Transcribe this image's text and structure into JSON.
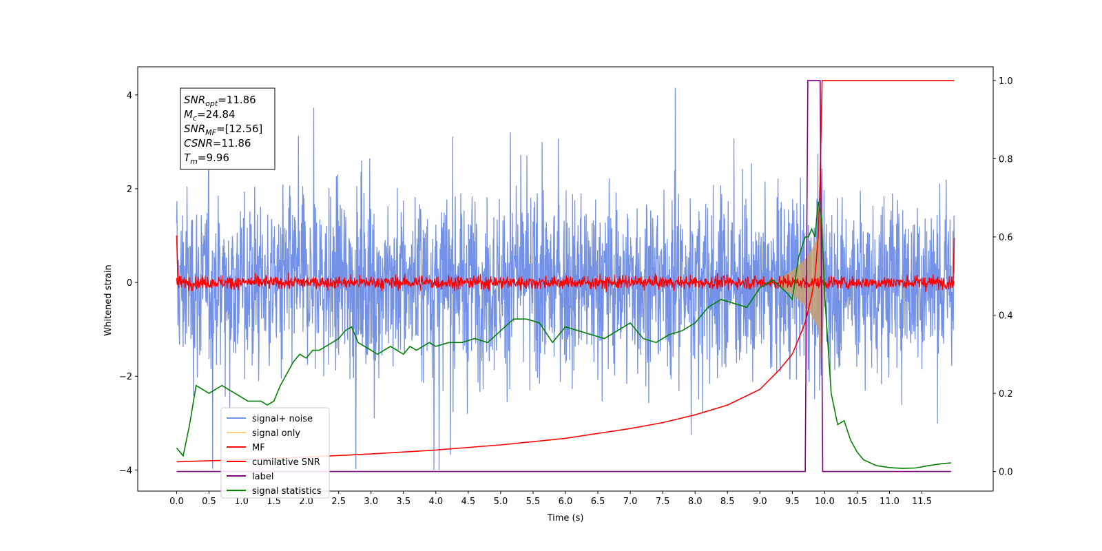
{
  "chart_data": {
    "type": "line",
    "xlabel": "Time (s)",
    "ylabel": "Whitened strain",
    "xlim": [
      -0.6,
      12.6
    ],
    "ylim": [
      -4.45,
      4.6
    ],
    "y2lim": [
      -0.05,
      1.035
    ],
    "grid": false,
    "legend_position": "lower-left",
    "x_ticks": [
      "0.0",
      "0.5",
      "1.0",
      "1.5",
      "2.0",
      "2.5",
      "3.0",
      "3.5",
      "4.0",
      "4.5",
      "5.0",
      "5.5",
      "6.0",
      "6.5",
      "7.0",
      "7.5",
      "8.0",
      "8.5",
      "9.0",
      "9.5",
      "10.0",
      "10.5",
      "11.0",
      "11.5"
    ],
    "y_ticks": [
      "−4",
      "−2",
      "0",
      "2",
      "4"
    ],
    "y2_ticks": [
      "0.0",
      "0.2",
      "0.4",
      "0.6",
      "0.8",
      "1.0"
    ],
    "annotation": {
      "lines": [
        {
          "base": "SNR",
          "sub": "opt",
          "value": "=11.86"
        },
        {
          "base": "M",
          "sub": "c",
          "value": "=24.84"
        },
        {
          "base": "SNR",
          "sub": "MF",
          "value": "=[12.56]"
        },
        {
          "base": "CSNR",
          "sub": "",
          "value": "=11.86"
        },
        {
          "base": "T",
          "sub": "m",
          "value": "=9.96"
        }
      ]
    },
    "series": [
      {
        "name": "signal+ noise",
        "axis": "left",
        "color": "#7391e6",
        "kind": "noise",
        "x_range": [
          0.0,
          12.0
        ],
        "amplitude_range": [
          -4.0,
          4.15
        ]
      },
      {
        "name": "signal only",
        "axis": "left",
        "color": "#ffcc80",
        "kind": "chirp",
        "x": [
          9.3,
          9.5,
          9.7,
          9.8,
          9.9,
          9.96,
          10.0
        ],
        "envelope": [
          0.1,
          0.25,
          0.5,
          0.7,
          1.0,
          1.8,
          0.0
        ]
      },
      {
        "name": "MF",
        "axis": "left",
        "color": "#ff0000",
        "kind": "noise",
        "x_range": [
          0.0,
          12.0
        ],
        "amplitude_range": [
          -0.25,
          0.25
        ]
      },
      {
        "name": "cumilative SNR",
        "axis": "right",
        "color": "#ff0000",
        "x": [
          0.0,
          1.0,
          2.0,
          3.0,
          4.0,
          5.0,
          6.0,
          7.0,
          7.5,
          8.0,
          8.5,
          9.0,
          9.3,
          9.5,
          9.6,
          9.7,
          9.8,
          9.85,
          9.9,
          9.93,
          9.96,
          12.0
        ],
        "values": [
          0.025,
          0.03,
          0.037,
          0.045,
          0.055,
          0.068,
          0.085,
          0.11,
          0.125,
          0.145,
          0.17,
          0.21,
          0.26,
          0.3,
          0.34,
          0.38,
          0.45,
          0.5,
          0.6,
          0.75,
          1.0,
          1.0
        ]
      },
      {
        "name": "label",
        "axis": "right",
        "color": "#800080",
        "x": [
          0.0,
          9.7,
          9.74,
          9.93,
          9.97,
          11.95
        ],
        "values": [
          0.0,
          0.0,
          1.0,
          1.0,
          0.0,
          0.0
        ]
      },
      {
        "name": "signal statistics",
        "axis": "right",
        "color": "#008000",
        "x": [
          0.0,
          0.1,
          0.2,
          0.3,
          0.4,
          0.5,
          0.6,
          0.7,
          0.8,
          0.9,
          1.0,
          1.1,
          1.2,
          1.3,
          1.4,
          1.5,
          1.6,
          1.7,
          1.8,
          1.9,
          2.0,
          2.1,
          2.2,
          2.3,
          2.4,
          2.5,
          2.6,
          2.7,
          2.8,
          2.9,
          3.0,
          3.1,
          3.2,
          3.3,
          3.4,
          3.5,
          3.6,
          3.7,
          3.8,
          3.9,
          4.0,
          4.2,
          4.4,
          4.6,
          4.8,
          5.0,
          5.2,
          5.4,
          5.6,
          5.8,
          6.0,
          6.2,
          6.4,
          6.6,
          6.8,
          7.0,
          7.2,
          7.4,
          7.6,
          7.8,
          8.0,
          8.2,
          8.4,
          8.6,
          8.8,
          9.0,
          9.2,
          9.4,
          9.5,
          9.6,
          9.7,
          9.75,
          9.8,
          9.85,
          9.9,
          9.95,
          10.0,
          10.1,
          10.2,
          10.3,
          10.4,
          10.5,
          10.6,
          10.8,
          11.0,
          11.2,
          11.4,
          11.6,
          11.8,
          11.95
        ],
        "values": [
          0.06,
          0.04,
          0.12,
          0.22,
          0.21,
          0.2,
          0.21,
          0.22,
          0.21,
          0.2,
          0.19,
          0.18,
          0.18,
          0.18,
          0.17,
          0.18,
          0.22,
          0.25,
          0.28,
          0.3,
          0.29,
          0.31,
          0.31,
          0.32,
          0.33,
          0.34,
          0.36,
          0.37,
          0.33,
          0.32,
          0.31,
          0.3,
          0.31,
          0.32,
          0.31,
          0.3,
          0.32,
          0.31,
          0.32,
          0.33,
          0.32,
          0.33,
          0.33,
          0.34,
          0.33,
          0.36,
          0.39,
          0.39,
          0.38,
          0.33,
          0.37,
          0.36,
          0.35,
          0.34,
          0.36,
          0.38,
          0.34,
          0.33,
          0.35,
          0.36,
          0.38,
          0.42,
          0.44,
          0.43,
          0.42,
          0.47,
          0.49,
          0.46,
          0.44,
          0.55,
          0.6,
          0.6,
          0.62,
          0.6,
          0.69,
          0.65,
          0.45,
          0.2,
          0.12,
          0.13,
          0.08,
          0.05,
          0.03,
          0.015,
          0.01,
          0.008,
          0.009,
          0.015,
          0.02,
          0.022
        ]
      }
    ]
  }
}
